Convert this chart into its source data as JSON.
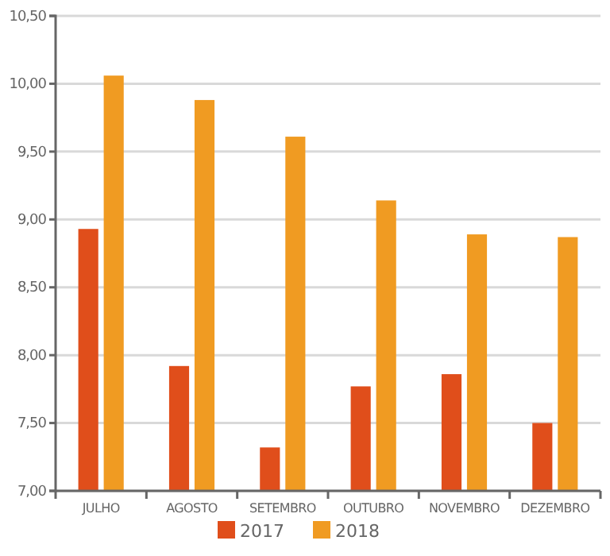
{
  "chart_data": {
    "type": "bar",
    "categories": [
      "JULHO",
      "AGOSTO",
      "SETEMBRO",
      "OUTUBRO",
      "NOVEMBRO",
      "DEZEMBRO"
    ],
    "series": [
      {
        "name": "2017",
        "color": "#e04e1b",
        "values": [
          8.93,
          7.92,
          7.32,
          7.77,
          7.86,
          7.5
        ]
      },
      {
        "name": "2018",
        "color": "#f09b22",
        "values": [
          10.06,
          9.88,
          9.61,
          9.14,
          8.89,
          8.87
        ]
      }
    ],
    "ylim": [
      7,
      10.5
    ],
    "yticks": [
      {
        "value": 7,
        "label": "7,00"
      },
      {
        "value": 7.5,
        "label": "7,50"
      },
      {
        "value": 8,
        "label": "8,00"
      },
      {
        "value": 8.5,
        "label": "8,50"
      },
      {
        "value": 9,
        "label": "9,00"
      },
      {
        "value": 9.5,
        "label": "9,50"
      },
      {
        "value": 10,
        "label": "10,00"
      },
      {
        "value": 10.5,
        "label": "10,50"
      }
    ],
    "grid": "y",
    "legend": "bottom"
  }
}
